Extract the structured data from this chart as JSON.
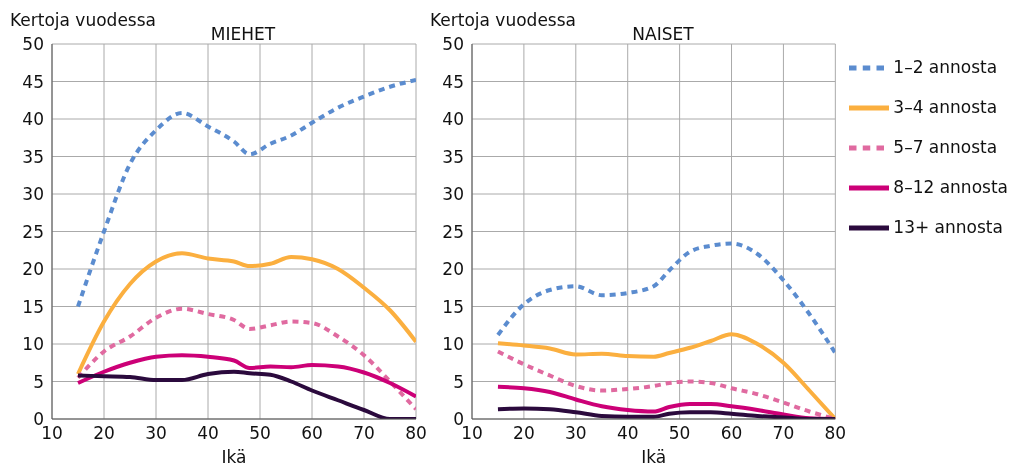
{
  "chart_data": [
    {
      "type": "line",
      "title": "MIEHET",
      "xlabel": "Ikä",
      "ylabel": "Kertoja vuodessa",
      "xlim": [
        10,
        80
      ],
      "xticks": [
        10,
        20,
        30,
        40,
        50,
        60,
        70,
        80
      ],
      "ylim": [
        0,
        50
      ],
      "yticks": [
        0,
        5,
        10,
        15,
        20,
        25,
        30,
        35,
        40,
        45,
        50
      ],
      "grid": true,
      "legend": false,
      "marker": "none",
      "x": [
        15,
        20,
        25,
        30,
        35,
        40,
        45,
        48,
        52,
        56,
        60,
        65,
        70,
        75,
        80
      ],
      "series": [
        {
          "color": "#5b8ccf",
          "line_style": "dashed",
          "values": [
            15,
            25,
            34,
            38.5,
            40.8,
            39,
            37,
            35.3,
            36.7,
            37.8,
            39.5,
            41.5,
            43,
            44.3,
            45.2
          ]
        },
        {
          "color": "#fbaf3f",
          "line_style": "solid",
          "values": [
            6,
            13,
            18,
            21,
            22.1,
            21.4,
            21,
            20.4,
            20.7,
            21.6,
            21.3,
            20,
            17.5,
            14.5,
            10.3
          ]
        },
        {
          "color": "#e06aa0",
          "line_style": "dashed",
          "values": [
            5.5,
            9,
            11,
            13.5,
            14.7,
            14,
            13.2,
            12,
            12.5,
            13,
            12.8,
            11,
            8.5,
            5,
            1.3
          ]
        },
        {
          "color": "#cc0077",
          "line_style": "solid",
          "values": [
            4.8,
            6.3,
            7.5,
            8.3,
            8.5,
            8.3,
            7.8,
            6.8,
            7,
            6.9,
            7.2,
            7,
            6.2,
            4.8,
            3
          ]
        },
        {
          "color": "#2b0a3d",
          "line_style": "solid",
          "values": [
            5.8,
            5.7,
            5.6,
            5.2,
            5.2,
            6,
            6.3,
            6.1,
            5.9,
            5,
            3.8,
            2.5,
            1.2,
            0,
            0
          ]
        }
      ]
    },
    {
      "type": "line",
      "title": "NAISET",
      "xlabel": "Ikä",
      "ylabel": "Kertoja vuodessa",
      "xlim": [
        10,
        80
      ],
      "xticks": [
        10,
        20,
        30,
        40,
        50,
        60,
        70,
        80
      ],
      "ylim": [
        0,
        50
      ],
      "yticks": [
        0,
        5,
        10,
        15,
        20,
        25,
        30,
        35,
        40,
        45,
        50
      ],
      "grid": true,
      "legend": "right",
      "marker": "none",
      "x": [
        15,
        20,
        25,
        30,
        35,
        40,
        45,
        48,
        52,
        56,
        60,
        65,
        70,
        75,
        80
      ],
      "series": [
        {
          "name": "1–2 annosta",
          "color": "#5b8ccf",
          "line_style": "dashed",
          "values": [
            11.2,
            15.3,
            17.2,
            17.7,
            16.5,
            16.8,
            17.7,
            19.8,
            22.3,
            23.1,
            23.4,
            22,
            18.5,
            14,
            8.8
          ]
        },
        {
          "name": "3–4 annosta",
          "color": "#fbaf3f",
          "line_style": "solid",
          "values": [
            10.1,
            9.8,
            9.4,
            8.6,
            8.7,
            8.4,
            8.3,
            8.8,
            9.5,
            10.4,
            11.3,
            10,
            7.5,
            3.8,
            0
          ]
        },
        {
          "name": "5–7 annosta",
          "color": "#e06aa0",
          "line_style": "dashed",
          "values": [
            9,
            7.3,
            5.8,
            4.4,
            3.8,
            4,
            4.4,
            4.8,
            5,
            4.8,
            4.1,
            3.3,
            2.2,
            1,
            0
          ]
        },
        {
          "name": "8–12 annosta",
          "color": "#cc0077",
          "line_style": "solid",
          "values": [
            4.3,
            4.1,
            3.6,
            2.6,
            1.7,
            1.2,
            1,
            1.6,
            2,
            2,
            1.7,
            1.2,
            0.6,
            0.1,
            0
          ]
        },
        {
          "name": "13+ annosta",
          "color": "#2b0a3d",
          "line_style": "solid",
          "values": [
            1.3,
            1.4,
            1.3,
            0.9,
            0.4,
            0.3,
            0.3,
            0.7,
            0.9,
            0.9,
            0.7,
            0.4,
            0.2,
            0,
            0
          ]
        }
      ]
    }
  ]
}
